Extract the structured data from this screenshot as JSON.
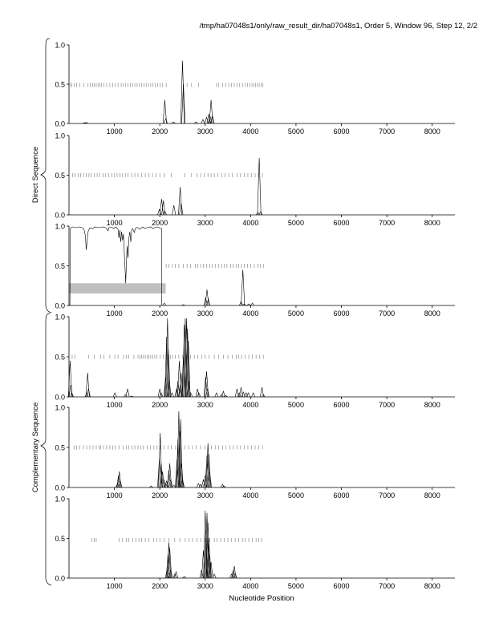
{
  "header": "/tmp/ha07048s1/only/raw_result_dir/ha07048s1, Order 5, Window 96, Step 12, 2/2",
  "group_labels": [
    "Direct Sequence",
    "Complementary Sequence"
  ],
  "chart_data": {
    "type": "line",
    "xlabel": "Nucleotide Position",
    "xlim": [
      0,
      8500
    ],
    "ylim": [
      0,
      1
    ],
    "x_ticks": [
      "1000",
      "2000",
      "3000",
      "4000",
      "5000",
      "6000",
      "7000",
      "8000"
    ],
    "y_ticks": [
      "0.0",
      "0.5",
      "1.0"
    ],
    "grid": false,
    "shaded_region": {
      "panel": 3,
      "x": [
        0,
        2130
      ],
      "y": [
        0.15,
        0.28
      ]
    },
    "panels": [
      {
        "group": "Direct Sequence",
        "peaks": [
          [
            340,
            0.01
          ],
          [
            380,
            0.015
          ],
          [
            2110,
            0.3
          ],
          [
            2130,
            0.06
          ],
          [
            2300,
            0.02
          ],
          [
            2500,
            0.8
          ],
          [
            2520,
            0.5
          ],
          [
            2800,
            0.02
          ],
          [
            2950,
            0.05
          ],
          [
            3030,
            0.08
          ],
          [
            3080,
            0.12
          ],
          [
            3110,
            0.09
          ],
          [
            3130,
            0.3
          ],
          [
            3160,
            0.1
          ]
        ],
        "ticks_y": 0.49,
        "tick_x": [
          30,
          60,
          120,
          170,
          240,
          330,
          420,
          470,
          520,
          560,
          600,
          640,
          680,
          720,
          770,
          830,
          900,
          960,
          1020,
          1080,
          1150,
          1200,
          1250,
          1300,
          1350,
          1400,
          1450,
          1500,
          1550,
          1600,
          1650,
          1700,
          1750,
          1800,
          1850,
          1900,
          1950,
          2010,
          2060,
          2140,
          2600,
          2700,
          2850,
          3250,
          3300,
          3380,
          3450,
          3520,
          3580,
          3640,
          3700,
          3760,
          3820,
          3880,
          3930,
          3980,
          4030,
          4070,
          4110,
          4150,
          4190,
          4230,
          4270
        ]
      },
      {
        "group": "Direct Sequence",
        "peaks": [
          [
            1990,
            0.07
          ],
          [
            2040,
            0.2
          ],
          [
            2080,
            0.18
          ],
          [
            2110,
            0.05
          ],
          [
            2310,
            0.12
          ],
          [
            2450,
            0.35
          ],
          [
            2470,
            0.15
          ],
          [
            4160,
            0.03
          ],
          [
            4190,
            0.72
          ],
          [
            4220,
            0.04
          ]
        ],
        "ticks_y": 0.5,
        "tick_x": [
          80,
          130,
          200,
          260,
          320,
          380,
          440,
          490,
          560,
          620,
          680,
          750,
          810,
          870,
          940,
          1000,
          1060,
          1120,
          1180,
          1240,
          1300,
          1380,
          1450,
          1520,
          1600,
          1680,
          1760,
          1840,
          1920,
          2000,
          2100,
          2250,
          2550,
          2700,
          2820,
          2900,
          2980,
          3060,
          3130,
          3200,
          3280,
          3360,
          3440,
          3520,
          3600,
          3700,
          3780,
          3860,
          3940,
          4020,
          4100,
          4180,
          4260
        ]
      },
      {
        "group": "Direct Sequence",
        "profile": [
          [
            20,
            0.0
          ],
          [
            30,
            0.97
          ],
          [
            60,
            0.985
          ],
          [
            100,
            0.99
          ],
          [
            160,
            0.985
          ],
          [
            230,
            0.99
          ],
          [
            290,
            0.98
          ],
          [
            330,
            0.96
          ],
          [
            360,
            0.88
          ],
          [
            380,
            0.7
          ],
          [
            400,
            0.82
          ],
          [
            420,
            0.93
          ],
          [
            460,
            0.98
          ],
          [
            520,
            0.97
          ],
          [
            580,
            0.99
          ],
          [
            640,
            0.98
          ],
          [
            700,
            0.985
          ],
          [
            760,
            0.99
          ],
          [
            820,
            0.975
          ],
          [
            860,
            0.94
          ],
          [
            880,
            0.98
          ],
          [
            940,
            0.985
          ],
          [
            990,
            0.97
          ],
          [
            1030,
            0.99
          ],
          [
            1080,
            0.96
          ],
          [
            1100,
            0.85
          ],
          [
            1120,
            0.95
          ],
          [
            1140,
            0.8
          ],
          [
            1160,
            0.93
          ],
          [
            1180,
            0.82
          ],
          [
            1200,
            0.9
          ],
          [
            1220,
            0.65
          ],
          [
            1240,
            0.4
          ],
          [
            1250,
            0.28
          ],
          [
            1260,
            0.45
          ],
          [
            1280,
            0.75
          ],
          [
            1300,
            0.6
          ],
          [
            1320,
            0.85
          ],
          [
            1340,
            0.93
          ],
          [
            1360,
            0.8
          ],
          [
            1380,
            0.95
          ],
          [
            1400,
            0.97
          ],
          [
            1440,
            0.92
          ],
          [
            1460,
            0.97
          ],
          [
            1500,
            0.985
          ],
          [
            1560,
            0.96
          ],
          [
            1620,
            0.99
          ],
          [
            1680,
            0.97
          ],
          [
            1740,
            0.985
          ],
          [
            1800,
            0.99
          ],
          [
            1850,
            0.97
          ],
          [
            1900,
            0.985
          ],
          [
            1950,
            0.99
          ],
          [
            1990,
            0.98
          ],
          [
            2010,
            0.97
          ],
          [
            2040,
            0.97
          ],
          [
            2045,
            0.0
          ]
        ],
        "peaks": [
          [
            2100,
            0.03
          ],
          [
            2520,
            0.01
          ],
          [
            3010,
            0.1
          ],
          [
            3040,
            0.2
          ],
          [
            3070,
            0.08
          ],
          [
            3790,
            0.05
          ],
          [
            3830,
            0.45
          ],
          [
            3860,
            0.02
          ],
          [
            3960,
            0.02
          ],
          [
            4040,
            0.03
          ]
        ],
        "ticks_y": 0.5,
        "tick_x": [
          2140,
          2200,
          2280,
          2340,
          2420,
          2520,
          2600,
          2680,
          2780,
          2840,
          2900,
          2960,
          3030,
          3100,
          3160,
          3230,
          3300,
          3360,
          3420,
          3480,
          3560,
          3620,
          3680,
          3740,
          3800,
          3860,
          3930,
          4000,
          4080,
          4160,
          4220,
          4290
        ]
      },
      {
        "group": "Complementary Sequence",
        "peaks": [
          [
            25,
            0.45
          ],
          [
            40,
            0.15
          ],
          [
            60,
            0.05
          ],
          [
            390,
            0.05
          ],
          [
            410,
            0.3
          ],
          [
            430,
            0.1
          ],
          [
            1010,
            0.05
          ],
          [
            1240,
            0.03
          ],
          [
            1290,
            0.1
          ],
          [
            1380,
            0.01
          ],
          [
            2000,
            0.1
          ],
          [
            2030,
            0.05
          ],
          [
            2130,
            0.25
          ],
          [
            2150,
            0.75
          ],
          [
            2170,
            0.98
          ],
          [
            2190,
            0.6
          ],
          [
            2210,
            0.2
          ],
          [
            2270,
            0.05
          ],
          [
            2370,
            0.1
          ],
          [
            2400,
            0.2
          ],
          [
            2430,
            0.45
          ],
          [
            2450,
            0.15
          ],
          [
            2470,
            0.3
          ],
          [
            2520,
            0.5
          ],
          [
            2540,
            0.9
          ],
          [
            2560,
            0.98
          ],
          [
            2590,
            0.98
          ],
          [
            2610,
            0.85
          ],
          [
            2630,
            0.7
          ],
          [
            2640,
            0.2
          ],
          [
            2680,
            0.05
          ],
          [
            2830,
            0.1
          ],
          [
            2860,
            0.05
          ],
          [
            3010,
            0.25
          ],
          [
            3030,
            0.32
          ],
          [
            3050,
            0.1
          ],
          [
            3250,
            0.05
          ],
          [
            3360,
            0.03
          ],
          [
            3400,
            0.07
          ],
          [
            3450,
            0.02
          ],
          [
            3700,
            0.1
          ],
          [
            3750,
            0.05
          ],
          [
            3790,
            0.12
          ],
          [
            3840,
            0.06
          ],
          [
            3900,
            0.05
          ],
          [
            3950,
            0.05
          ],
          [
            4060,
            0.05
          ],
          [
            4250,
            0.12
          ],
          [
            4280,
            0.03
          ]
        ],
        "ticks_y": 0.5,
        "tick_x": [
          70,
          130,
          430,
          560,
          700,
          770,
          900,
          1010,
          1080,
          1200,
          1260,
          1320,
          1430,
          1520,
          1560,
          1600,
          1640,
          1680,
          1720,
          1760,
          1800,
          1850,
          1890,
          1940,
          2010,
          2080,
          2180,
          2230,
          2280,
          2340,
          2420,
          2500,
          2580,
          2680,
          2760,
          2840,
          2920,
          3000,
          3080,
          3200,
          3300,
          3400,
          3500,
          3600,
          3680,
          3740,
          3800,
          3880,
          3960,
          4040,
          4120,
          4200,
          4280
        ]
      },
      {
        "group": "Complementary Sequence",
        "peaks": [
          [
            1070,
            0.05
          ],
          [
            1090,
            0.15
          ],
          [
            1110,
            0.2
          ],
          [
            1130,
            0.08
          ],
          [
            1810,
            0.02
          ],
          [
            1990,
            0.35
          ],
          [
            2010,
            0.68
          ],
          [
            2030,
            0.3
          ],
          [
            2060,
            0.2
          ],
          [
            2090,
            0.1
          ],
          [
            2130,
            0.05
          ],
          [
            2150,
            0.08
          ],
          [
            2200,
            0.22
          ],
          [
            2220,
            0.3
          ],
          [
            2240,
            0.1
          ],
          [
            2310,
            0.03
          ],
          [
            2380,
            0.35
          ],
          [
            2400,
            0.6
          ],
          [
            2420,
            0.95
          ],
          [
            2440,
            0.7
          ],
          [
            2460,
            0.85
          ],
          [
            2480,
            0.3
          ],
          [
            2500,
            0.1
          ],
          [
            2850,
            0.05
          ],
          [
            2900,
            0.04
          ],
          [
            2960,
            0.1
          ],
          [
            3000,
            0.15
          ],
          [
            3040,
            0.4
          ],
          [
            3060,
            0.55
          ],
          [
            3080,
            0.42
          ],
          [
            3100,
            0.2
          ],
          [
            3380,
            0.04
          ],
          [
            3410,
            0.02
          ]
        ],
        "ticks_y": 0.5,
        "tick_x": [
          110,
          170,
          230,
          320,
          390,
          460,
          530,
          600,
          660,
          700,
          760,
          830,
          900,
          960,
          1020,
          1100,
          1190,
          1260,
          1320,
          1390,
          1450,
          1520,
          1580,
          1640,
          1720,
          1790,
          1870,
          1940,
          2010,
          2090,
          2180,
          2250,
          2350,
          2450,
          2550,
          2640,
          2720,
          2800,
          2900,
          2990,
          3060,
          3140,
          3220,
          3300,
          3380,
          3460,
          3540,
          3620,
          3700,
          3780,
          3860,
          3940,
          4020,
          4100,
          4180,
          4260
        ]
      },
      {
        "group": "Complementary Sequence",
        "peaks": [
          [
            2160,
            0.1
          ],
          [
            2180,
            0.3
          ],
          [
            2200,
            0.45
          ],
          [
            2220,
            0.38
          ],
          [
            2240,
            0.1
          ],
          [
            2330,
            0.05
          ],
          [
            2360,
            0.08
          ],
          [
            2540,
            0.02
          ],
          [
            2920,
            0.1
          ],
          [
            2960,
            0.35
          ],
          [
            3000,
            0.85
          ],
          [
            3020,
            0.6
          ],
          [
            3040,
            0.82
          ],
          [
            3060,
            0.7
          ],
          [
            3080,
            0.5
          ],
          [
            3100,
            0.3
          ],
          [
            3130,
            0.2
          ],
          [
            3200,
            0.05
          ],
          [
            3580,
            0.05
          ],
          [
            3620,
            0.1
          ],
          [
            3640,
            0.15
          ],
          [
            3660,
            0.06
          ]
        ],
        "ticks_y": 0.48,
        "tick_x": [
          500,
          560,
          600,
          1100,
          1180,
          1260,
          1320,
          1400,
          1470,
          1540,
          1600,
          1680,
          1760,
          1860,
          1930,
          2000,
          2100,
          2200,
          2330,
          2440,
          2560,
          2640,
          2720,
          2820,
          2900,
          3000,
          3100,
          3200,
          3260,
          3340,
          3420,
          3500,
          3580,
          3660,
          3740,
          3820,
          3880,
          3960,
          4040,
          4120,
          4180,
          4240
        ]
      }
    ]
  }
}
